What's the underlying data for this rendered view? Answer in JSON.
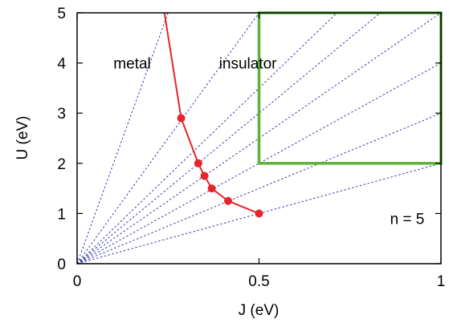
{
  "chart_data": {
    "type": "line",
    "xlabel": "J (eV)",
    "ylabel": "U (eV)",
    "xlim": [
      0,
      1
    ],
    "ylim": [
      0,
      5
    ],
    "x_ticks": [
      {
        "value": 0,
        "label": "0"
      },
      {
        "value": 0.5,
        "label": "0.5"
      },
      {
        "value": 1,
        "label": "1"
      }
    ],
    "y_ticks": [
      {
        "value": 0,
        "label": "0"
      },
      {
        "value": 1,
        "label": "1"
      },
      {
        "value": 2,
        "label": "2"
      },
      {
        "value": 3,
        "label": "3"
      },
      {
        "value": 4,
        "label": "4"
      },
      {
        "value": 5,
        "label": "5"
      }
    ],
    "grid": false,
    "series": [
      {
        "marker": "circle",
        "color": "#e8232a",
        "points": [
          {
            "x": 0.5,
            "y": 1.0
          },
          {
            "x": 0.415,
            "y": 1.25
          },
          {
            "x": 0.37,
            "y": 1.5
          },
          {
            "x": 0.35,
            "y": 1.75
          },
          {
            "x": 0.333,
            "y": 2.0
          },
          {
            "x": 0.286,
            "y": 2.9
          }
        ],
        "line_extension_top": {
          "x": 0.24,
          "y": 5.0
        }
      }
    ],
    "reference_lines": {
      "style": "dotted",
      "color": "#3a3aa8",
      "origin": {
        "x": 0,
        "y": 0
      },
      "slopes": [
        2,
        3,
        4,
        5,
        6,
        7,
        10,
        20
      ]
    },
    "region_box": {
      "color": "#5bb33a",
      "x_range": [
        0.5,
        1.0
      ],
      "y_range": [
        2.0,
        5.0
      ]
    },
    "annotations": [
      {
        "text": "metal",
        "x": 0.1,
        "y": 4.0
      },
      {
        "text": "insulator",
        "x": 0.39,
        "y": 4.0
      },
      {
        "text": "n = 5",
        "x": 0.86,
        "y": 0.9
      }
    ]
  }
}
